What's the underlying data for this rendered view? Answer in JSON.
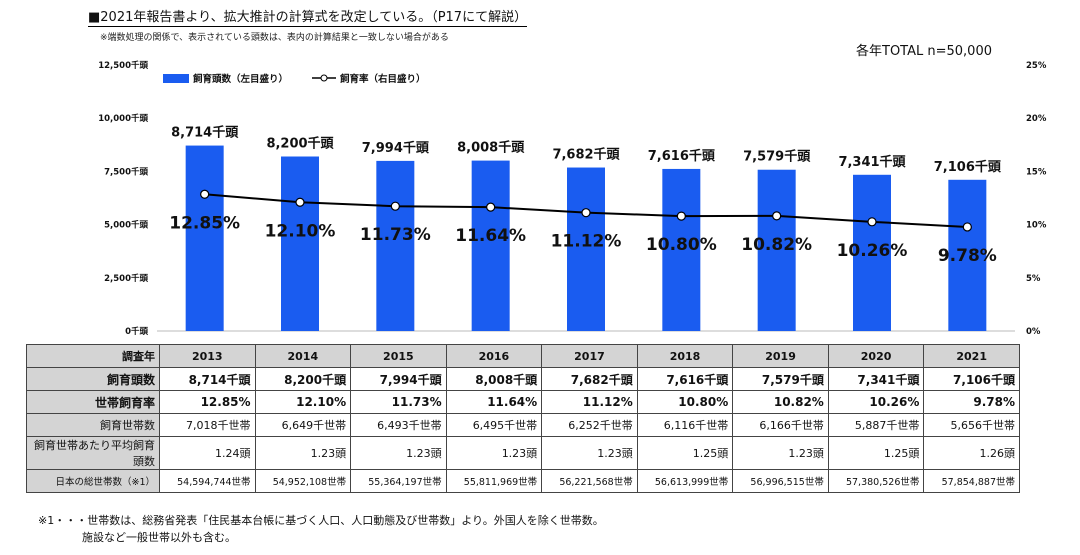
{
  "header": {
    "title": "■2021年報告書より、拡大推計の計算式を改定している。（P17にて解説）",
    "note": "※端数処理の関係で、表示されている頭数は、表内の計算結果と一致しない場合がある"
  },
  "total_label": "各年TOTAL n=50,000",
  "chart_data": {
    "type": "bar",
    "categories": [
      "2013",
      "2014",
      "2015",
      "2016",
      "2017",
      "2018",
      "2019",
      "2020",
      "2021"
    ],
    "series": [
      {
        "name": "飼育頭数（左目盛り）",
        "type": "bar",
        "axis": "left",
        "values": [
          8714,
          8200,
          7994,
          8008,
          7682,
          7616,
          7579,
          7341,
          7106
        ],
        "labels": [
          "8,714千頭",
          "8,200千頭",
          "7,994千頭",
          "8,008千頭",
          "7,682千頭",
          "7,616千頭",
          "7,579千頭",
          "7,341千頭",
          "7,106千頭"
        ],
        "color": "#1a5cf0"
      },
      {
        "name": "飼育率（右目盛り）",
        "type": "line",
        "axis": "right",
        "values": [
          12.85,
          12.1,
          11.73,
          11.64,
          11.12,
          10.8,
          10.82,
          10.26,
          9.78
        ],
        "labels": [
          "12.85%",
          "12.10%",
          "11.73%",
          "11.64%",
          "11.12%",
          "10.80%",
          "10.82%",
          "10.26%",
          "9.78%"
        ],
        "color": "#000000"
      }
    ],
    "y_left": {
      "ticks": [
        "0千頭",
        "2,500千頭",
        "5,000千頭",
        "7,500千頭",
        "10,000千頭",
        "12,500千頭"
      ],
      "lim": [
        0,
        12500
      ]
    },
    "y_right": {
      "ticks": [
        "0%",
        "5%",
        "10%",
        "15%",
        "20%",
        "25%"
      ],
      "lim": [
        0,
        25
      ]
    },
    "legend_placement": "top-left"
  },
  "table": {
    "rows": [
      {
        "label": "調査年",
        "style": "hdr",
        "cells": [
          "2013",
          "2014",
          "2015",
          "2016",
          "2017",
          "2018",
          "2019",
          "2020",
          "2021"
        ]
      },
      {
        "label": "飼育頭数",
        "style": "bold",
        "cells": [
          "8,714千頭",
          "8,200千頭",
          "7,994千頭",
          "8,008千頭",
          "7,682千頭",
          "7,616千頭",
          "7,579千頭",
          "7,341千頭",
          "7,106千頭"
        ]
      },
      {
        "label": "世帯飼育率",
        "style": "bold",
        "cells": [
          "12.85%",
          "12.10%",
          "11.73%",
          "11.64%",
          "11.12%",
          "10.80%",
          "10.82%",
          "10.26%",
          "9.78%"
        ]
      },
      {
        "label": "飼育世帯数",
        "style": "mid",
        "cells": [
          "7,018千世帯",
          "6,649千世帯",
          "6,493千世帯",
          "6,495千世帯",
          "6,252千世帯",
          "6,116千世帯",
          "6,166千世帯",
          "5,887千世帯",
          "5,656千世帯"
        ]
      },
      {
        "label": "飼育世帯あたり平均飼育頭数",
        "style": "mid",
        "cells": [
          "1.24頭",
          "1.23頭",
          "1.23頭",
          "1.23頭",
          "1.23頭",
          "1.25頭",
          "1.23頭",
          "1.25頭",
          "1.26頭"
        ]
      },
      {
        "label": "日本の総世帯数（※1）",
        "style": "small",
        "cells": [
          "54,594,744世帯",
          "54,952,108世帯",
          "55,364,197世帯",
          "55,811,969世帯",
          "56,221,568世帯",
          "56,613,999世帯",
          "56,996,515世帯",
          "57,380,526世帯",
          "57,854,887世帯"
        ]
      }
    ]
  },
  "footnotes": {
    "line1": "※1・・・世帯数は、総務省発表「住民基本台帳に基づく人口、人口動態及び世帯数」より。外国人を除く世帯数。",
    "line2": "施設など一般世帯以外も含む。"
  }
}
